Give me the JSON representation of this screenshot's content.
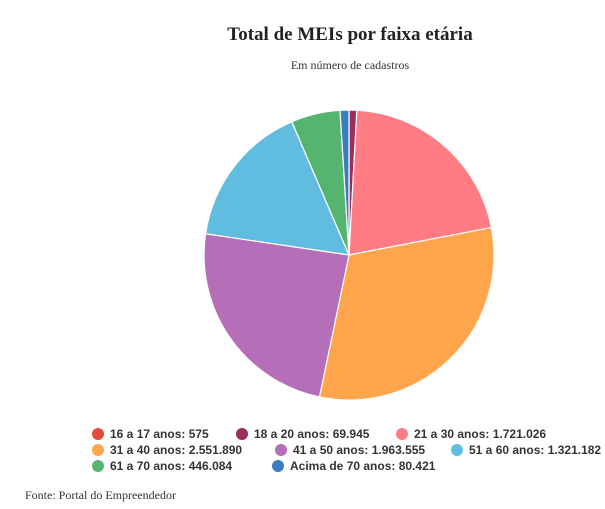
{
  "chart_data": {
    "type": "pie",
    "title": "Total de MEIs por faixa etária",
    "subtitle": "Em número de cadastros",
    "slices": [
      {
        "label": "16 a 17 anos",
        "value": 575,
        "display": "575",
        "color": "#e34a3e"
      },
      {
        "label": "18 a 20 anos",
        "value": 69945,
        "display": "69.945",
        "color": "#9b2d5f"
      },
      {
        "label": "21 a 30 anos",
        "value": 1721026,
        "display": "1.721.026",
        "color": "#ff7c85"
      },
      {
        "label": "31 a 40 anos",
        "value": 2551890,
        "display": "2.551.890",
        "color": "#ffa54b"
      },
      {
        "label": "41 a 50 anos",
        "value": 1963555,
        "display": "1.963.555",
        "color": "#b56eb7"
      },
      {
        "label": "51 a 60 anos",
        "value": 1321182,
        "display": "1.321.182",
        "color": "#61bde0"
      },
      {
        "label": "61 a 70 anos",
        "value": 446084,
        "display": "446.084",
        "color": "#55b56f"
      },
      {
        "label": "Acima de 70 anos",
        "value": 80421,
        "display": "80.421",
        "color": "#3b7ec0"
      }
    ],
    "legend_position": "bottom",
    "source": "Fonte: Portal do Empreendedor"
  }
}
